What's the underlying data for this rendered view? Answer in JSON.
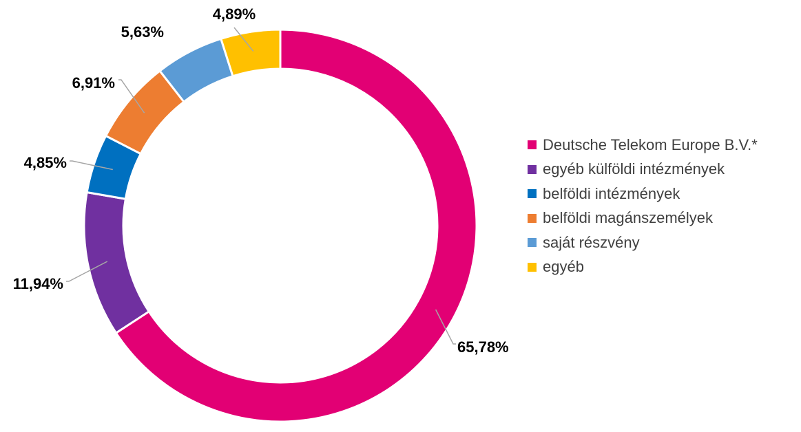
{
  "chart_data": {
    "type": "pie",
    "variant": "donut",
    "title": "",
    "legend_position": "right",
    "slices": [
      {
        "name": "Deutsche Telekom Europe B.V.*",
        "value": 65.78,
        "label": "65,78%",
        "color": "#e20074"
      },
      {
        "name": "egyéb külföldi intézmények",
        "value": 11.94,
        "label": "11,94%",
        "color": "#7030a0"
      },
      {
        "name": "belföldi intézmények",
        "value": 4.85,
        "label": "4,85%",
        "color": "#0070c0"
      },
      {
        "name": "belföldi magánszemélyek",
        "value": 6.91,
        "label": "6,91%",
        "color": "#ed7d31"
      },
      {
        "name": "saját részvény",
        "value": 5.63,
        "label": "5,63%",
        "color": "#5b9bd5"
      },
      {
        "name": "egyéb",
        "value": 4.89,
        "label": "4,89%",
        "color": "#ffc000"
      }
    ]
  }
}
